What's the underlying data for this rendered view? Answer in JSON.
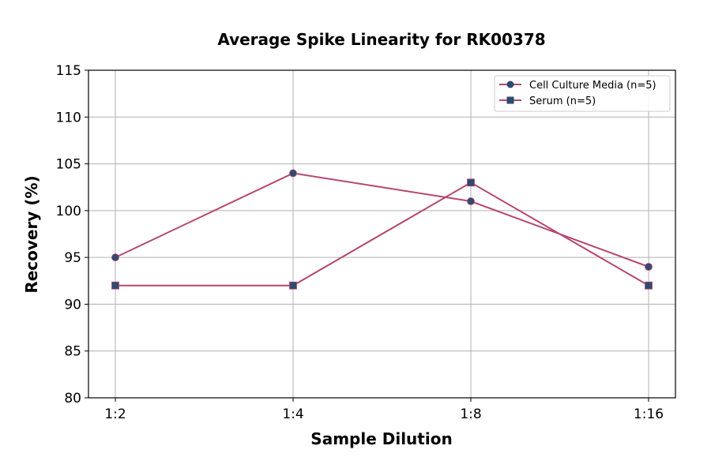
{
  "chart_data": {
    "type": "line",
    "title": "Average Spike Linearity for RK00378",
    "xlabel": "Sample Dilution",
    "ylabel": "Recovery (%)",
    "categories": [
      "1:2",
      "1:4",
      "1:8",
      "1:16"
    ],
    "ylim": [
      80,
      115
    ],
    "yticks": [
      80,
      85,
      90,
      95,
      100,
      105,
      110,
      115
    ],
    "grid": true,
    "legend_position": "top-right",
    "series": [
      {
        "name": "Cell Culture Media (n=5)",
        "marker": "circle",
        "values": [
          95,
          104,
          101,
          94
        ]
      },
      {
        "name": "Serum (n=5)",
        "marker": "square",
        "values": [
          92,
          92,
          103,
          92
        ]
      }
    ],
    "colors": {
      "line": "#b5476f",
      "marker": "#2e4a6e",
      "grid": "#b0b0b0"
    }
  }
}
